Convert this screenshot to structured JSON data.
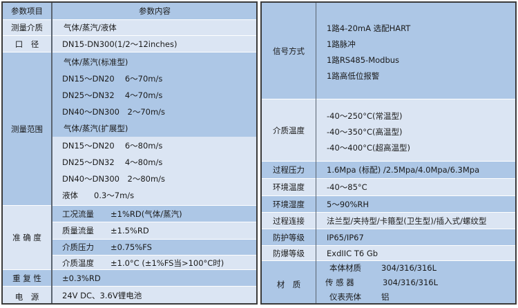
{
  "left": {
    "header": {
      "item": "参数项目",
      "content": "参数内容"
    },
    "medium": {
      "label": "测量介质",
      "value": "气体/蒸汽/液体"
    },
    "diameter": {
      "label": "口　径",
      "value": "DN15-DN300(1/2～12inches)"
    },
    "range": {
      "label": "测量范围",
      "lines": [
        "气体/蒸汽(标准型)",
        "DN15～DN20　 6～70m/s",
        "DN25～DN32　 4～70m/s",
        "DN40～DN300　2～70m/s",
        "气体/蒸汽(扩展型)",
        "DN15～DN20　 6～80m/s",
        "DN25～DN32　 4～80m/s",
        "DN40～DN300　2～80m/s",
        "液体　　0.3～7m/s"
      ]
    },
    "accuracy": {
      "label": "准 确 度",
      "rows": [
        {
          "name": "工况流量",
          "value": "±1%RD(气体/蒸汽)"
        },
        {
          "name": "质量流量",
          "value": "±1.5%RD"
        },
        {
          "name": "介质压力",
          "value": "±0.75%FS"
        },
        {
          "name": "介质温度",
          "value": "±1.0°C (±1%FS当>100°C时)"
        }
      ]
    },
    "repeat": {
      "label": "重 复 性",
      "value": "±0.3%RD"
    },
    "power": {
      "label": "电　源",
      "value": "24V DC、3.6V锂电池"
    }
  },
  "right": {
    "signal": {
      "label": "信号方式",
      "lines": [
        "1路4-20mA 选配HART",
        "1路脉冲",
        "1路RS485-Modbus",
        "1路高低位报警"
      ]
    },
    "temp": {
      "label": "介质温度",
      "lines": [
        "-40～250°C(常温型)",
        "-40～350°C(高温型)",
        "-40～400°C(超高温型)"
      ]
    },
    "pressure": {
      "label": "过程压力",
      "value": "1.6Mpa (标配) /2.5Mpa/4.0Mpa/6.3Mpa"
    },
    "envtemp": {
      "label": "环境温度",
      "value": "-40～85°C"
    },
    "humidity": {
      "label": "环境湿度",
      "value": "5～90%RH"
    },
    "connection": {
      "label": "过程连接",
      "value": "法兰型/夹持型/卡箍型(卫生型)/插入式/螺纹型"
    },
    "protection": {
      "label": "防护等级",
      "value": "IP65/IP67"
    },
    "explosion": {
      "label": "防爆等级",
      "value": "ExdIIC T6 Gb"
    },
    "material": {
      "label": "材　质",
      "rows": [
        {
          "name": "本体材质",
          "value": "304/316/316L"
        },
        {
          "name": "传 感 器",
          "value": "304/316/316L"
        },
        {
          "name": "仪表壳体",
          "value": "铝"
        }
      ]
    }
  },
  "colors": {
    "dark": "#adc7e6",
    "light": "#dbe5f3",
    "border": "#3a3a3a"
  }
}
